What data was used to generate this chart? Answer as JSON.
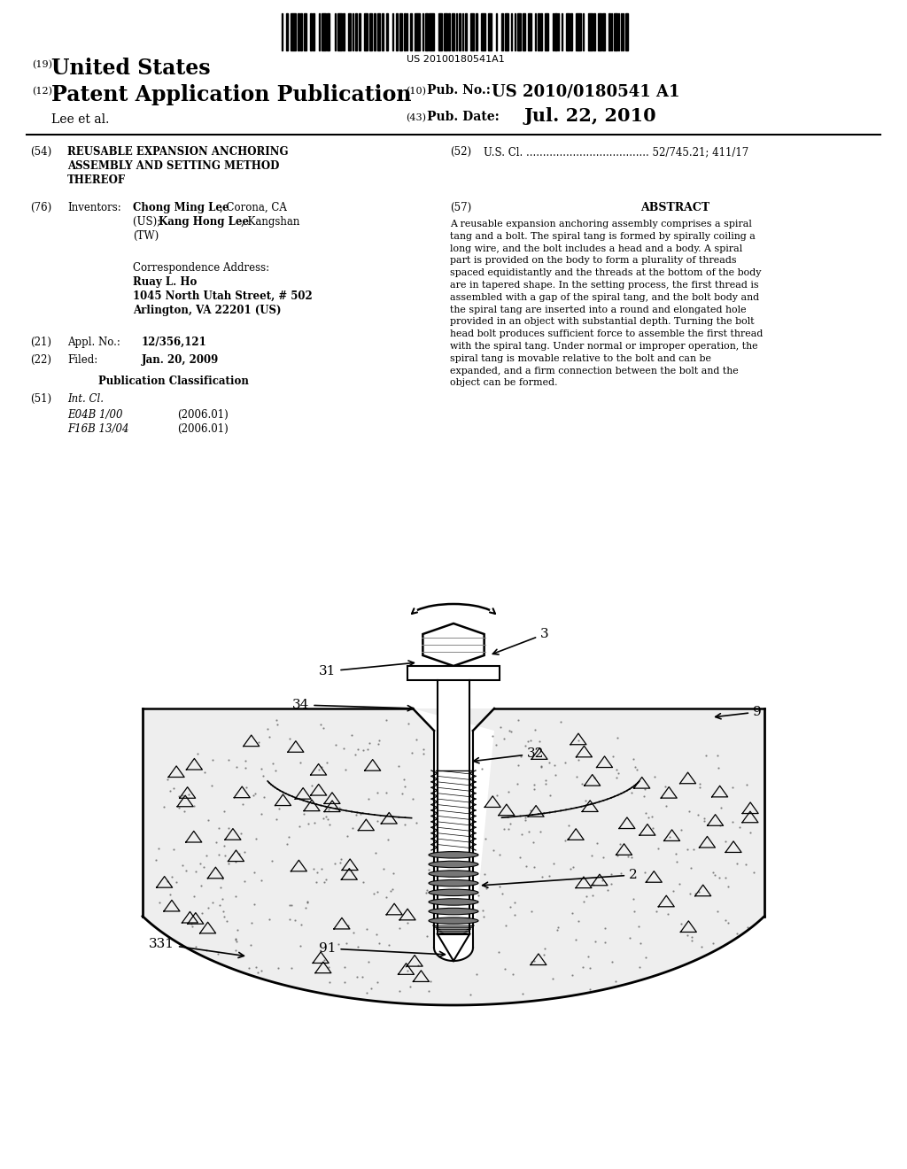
{
  "bg": "#ffffff",
  "barcode_text": "US 20100180541A1",
  "patent_num": "US 2010/0180541 A1",
  "pub_date_val": "Jul. 22, 2010",
  "header_19": "(19)",
  "header_12": "(12)",
  "header_10": "(10)",
  "header_43": "(43)",
  "united_states": "United States",
  "pat_app_pub": "Patent Application Publication",
  "inventors_line": "Lee et al.",
  "pub_no_label": "Pub. No.:",
  "pub_date_label": "Pub. Date:",
  "s54_num": "(54)",
  "s54_t1": "REUSABLE EXPANSION ANCHORING",
  "s54_t2": "ASSEMBLY AND SETTING METHOD",
  "s54_t3": "THEREOF",
  "s52_num": "(52)",
  "s52_text": "U.S. Cl. ..................................... 52/745.21; 411/17",
  "s76_num": "(76)",
  "s76_label": "Inventors:",
  "s76_bold1": "Chong Ming Lee",
  "s76_plain1": ", Corona, CA",
  "s76_plain2": "(US); ",
  "s76_bold2": "Kang Hong Lee",
  "s76_plain3": ", Kangshan",
  "s76_plain4": "(TW)",
  "s57_num": "(57)",
  "s57_title": "ABSTRACT",
  "abstract_lines": [
    "A reusable expansion anchoring assembly comprises a spiral",
    "tang and a bolt. The spiral tang is formed by spirally coiling a",
    "long wire, and the bolt includes a head and a body. A spiral",
    "part is provided on the body to form a plurality of threads",
    "spaced equidistantly and the threads at the bottom of the body",
    "are in tapered shape. In the setting process, the first thread is",
    "assembled with a gap of the spiral tang, and the bolt body and",
    "the spiral tang are inserted into a round and elongated hole",
    "provided in an object with substantial depth. Turning the bolt",
    "head bolt produces sufficient force to assemble the first thread",
    "with the spiral tang. Under normal or improper operation, the",
    "spiral tang is movable relative to the bolt and can be",
    "expanded, and a firm connection between the bolt and the",
    "object can be formed."
  ],
  "corr_l1": "Correspondence Address:",
  "corr_l2": "Ruay L. Ho",
  "corr_l3": "1045 North Utah Street, # 502",
  "corr_l4": "Arlington, VA 22201 (US)",
  "s21_num": "(21)",
  "s21_label": "Appl. No.:",
  "s21_val": "12/356,121",
  "s22_num": "(22)",
  "s22_label": "Filed:",
  "s22_val": "Jan. 20, 2009",
  "pub_class": "Publication Classification",
  "s51_num": "(51)",
  "s51_label": "Int. Cl.",
  "s51_r1a": "E04B 1/00",
  "s51_r1b": "(2006.01)",
  "s51_r2a": "F16B 13/04",
  "s51_r2b": "(2006.01)"
}
